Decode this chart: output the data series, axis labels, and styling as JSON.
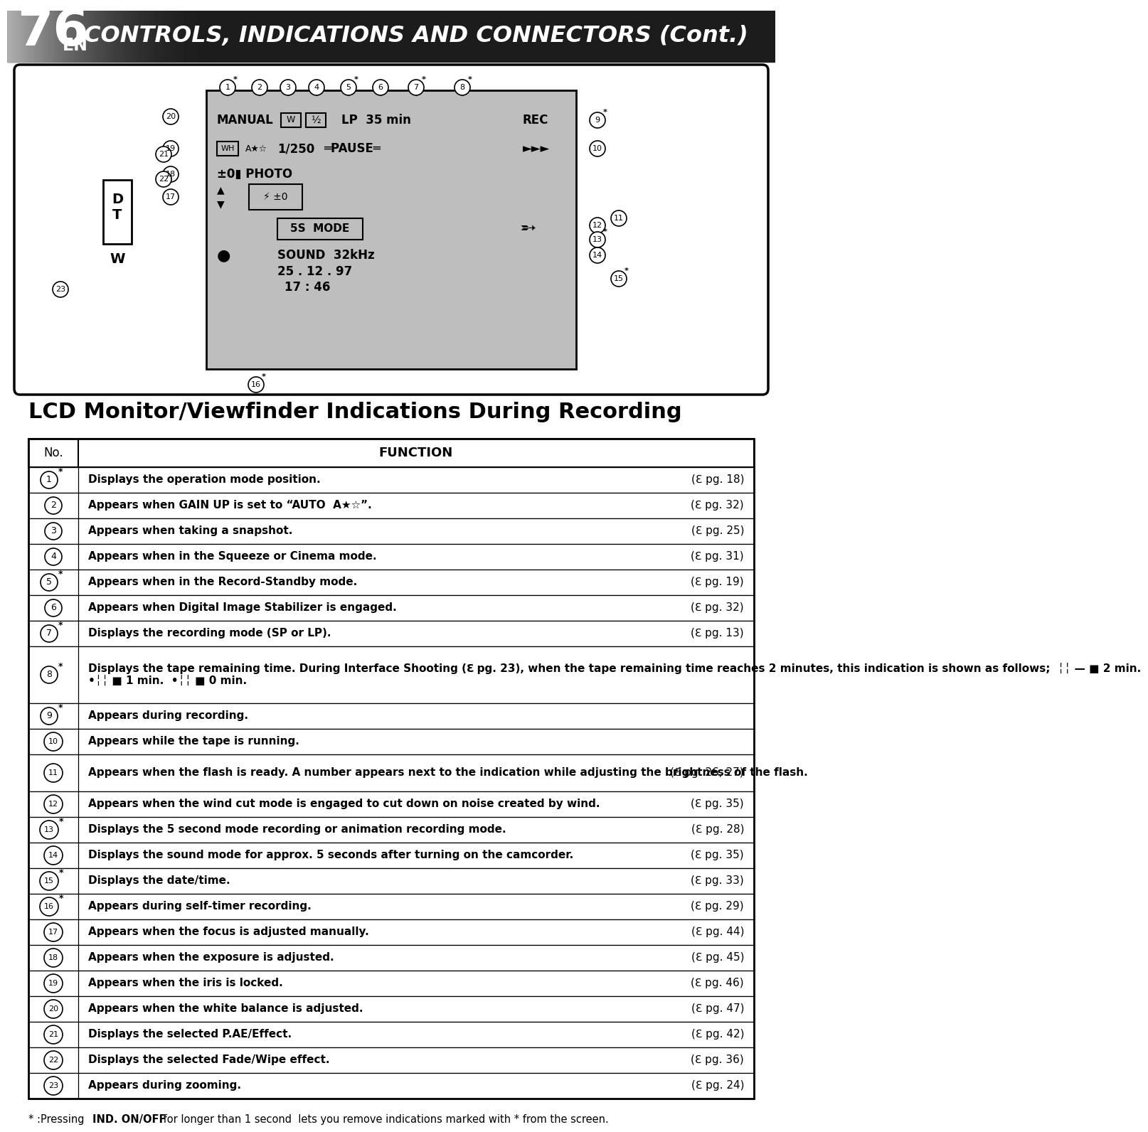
{
  "title_number": "76",
  "title_sub": "EN",
  "title_text": "CONTROLS, INDICATIONS AND CONNECTORS (Cont.)",
  "section_title": "LCD Monitor/Viewfinder Indications During Recording",
  "table_header_no": "No.",
  "table_header_func": "FUNCTION",
  "rows": [
    {
      "no": "1",
      "asterisk": true,
      "text": "Displays the operation mode position.",
      "page": "pg. 18"
    },
    {
      "no": "2",
      "asterisk": false,
      "text": "Appears when GAIN UP is set to “AUTO  A★☆”.",
      "page": "pg. 32"
    },
    {
      "no": "3",
      "asterisk": false,
      "text": "Appears when taking a snapshot.",
      "page": "pg. 25"
    },
    {
      "no": "4",
      "asterisk": false,
      "text": "Appears when in the Squeeze or Cinema mode.",
      "page": "pg. 31"
    },
    {
      "no": "5",
      "asterisk": true,
      "text": "Appears when in the Record-Standby mode.",
      "page": "pg. 19"
    },
    {
      "no": "6",
      "asterisk": false,
      "text": "Appears when Digital Image Stabilizer is engaged.",
      "page": "pg. 32"
    },
    {
      "no": "7",
      "asterisk": true,
      "text": "Displays the recording mode (SP or LP).",
      "page": "pg. 13"
    },
    {
      "no": "8",
      "asterisk": true,
      "text": "Displays the tape remaining time. During Interface Shooting (ℇ pg. 23), when the tape remaining time reaches 2 minutes, this indication is shown as follows;  ╎╎ — ■ 2 min.\n•╎╎ ■ 1 min.  •╎╎ ■ 0 min.",
      "page": ""
    },
    {
      "no": "9",
      "asterisk": true,
      "text": "Appears during recording.",
      "page": ""
    },
    {
      "no": "10",
      "asterisk": false,
      "text": "Appears while the tape is running.",
      "page": ""
    },
    {
      "no": "11",
      "asterisk": false,
      "text": "Appears when the flash is ready. A number appears next to the indication while adjusting the brightness of the flash.",
      "page": "pg. 26, 27"
    },
    {
      "no": "12",
      "asterisk": false,
      "text": "Appears when the wind cut mode is engaged to cut down on noise created by wind.",
      "page": "pg. 35"
    },
    {
      "no": "13",
      "asterisk": true,
      "text": "Displays the 5 second mode recording or animation recording mode.",
      "page": "pg. 28"
    },
    {
      "no": "14",
      "asterisk": false,
      "text": "Displays the sound mode for approx. 5 seconds after turning on the camcorder.",
      "page": "pg. 35"
    },
    {
      "no": "15",
      "asterisk": true,
      "text": "Displays the date/time.",
      "page": "pg. 33"
    },
    {
      "no": "16",
      "asterisk": true,
      "text": "Appears during self-timer recording.",
      "page": "pg. 29"
    },
    {
      "no": "17",
      "asterisk": false,
      "text": "Appears when the focus is adjusted manually.",
      "page": "pg. 44"
    },
    {
      "no": "18",
      "asterisk": false,
      "text": "Appears when the exposure is adjusted.",
      "page": "pg. 45"
    },
    {
      "no": "19",
      "asterisk": false,
      "text": "Appears when the iris is locked.",
      "page": "pg. 46"
    },
    {
      "no": "20",
      "asterisk": false,
      "text": "Appears when the white balance is adjusted.",
      "page": "pg. 47"
    },
    {
      "no": "21",
      "asterisk": false,
      "text": "Displays the selected P.AE/Effect.",
      "page": "pg. 42"
    },
    {
      "no": "22",
      "asterisk": false,
      "text": "Displays the selected Fade/Wipe effect.",
      "page": "pg. 36"
    },
    {
      "no": "23",
      "asterisk": false,
      "text": "Appears during zooming.",
      "page": "pg. 24"
    }
  ],
  "bg_color": "#ffffff",
  "header_dark": "#1c1c1c",
  "header_mid": "#555555",
  "header_light": "#cccccc",
  "diagram_bg": "#e8e8e8",
  "diagram_box_bg": "#ffffff"
}
